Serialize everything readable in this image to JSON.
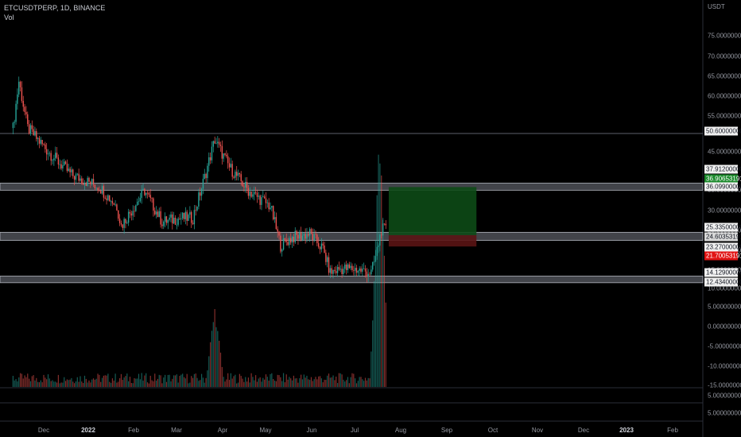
{
  "header": {
    "symbol_line": "ETCUSDTPERP, 1D, BINANCE",
    "indicator": "Vol"
  },
  "price_scale": {
    "currency": "USDT",
    "labels": [
      "75.00000000",
      "70.00000000",
      "65.00000000",
      "60.00000000",
      "55.00000000",
      "45.00000000",
      "35.00000000",
      "30.00000000",
      "25.00000000",
      "20.00000000",
      "15.00000000",
      "10.00000000"
    ],
    "volume_labels": [
      "5.00000000",
      "0.00000000",
      "-5.00000000",
      "-10.00000000",
      "-15.00000000"
    ],
    "sub_labels": [
      "5.00000000",
      "5.00000000"
    ]
  },
  "badges": [
    {
      "text": "50.60000000",
      "style": "white"
    },
    {
      "text": "37.91200000",
      "style": "white"
    },
    {
      "text": "36.90653191",
      "style": "green"
    },
    {
      "text": "36.09900000",
      "style": "white"
    },
    {
      "text": "25.33500000",
      "style": "white"
    },
    {
      "text": "24.60353191",
      "style": "gray"
    },
    {
      "text": "23.27000000",
      "style": "white"
    },
    {
      "text": "21.70053191",
      "style": "red"
    },
    {
      "text": "14.12900000",
      "style": "white"
    },
    {
      "text": "12.43400000",
      "style": "white"
    }
  ],
  "time_axis": [
    {
      "text": "Dec",
      "bold": false
    },
    {
      "text": "2022",
      "bold": true
    },
    {
      "text": "Feb",
      "bold": false
    },
    {
      "text": "Mar",
      "bold": false
    },
    {
      "text": "Apr",
      "bold": false
    },
    {
      "text": "May",
      "bold": false
    },
    {
      "text": "Jun",
      "bold": false
    },
    {
      "text": "Jul",
      "bold": false
    },
    {
      "text": "Aug",
      "bold": false
    },
    {
      "text": "Sep",
      "bold": false
    },
    {
      "text": "Oct",
      "bold": false
    },
    {
      "text": "Nov",
      "bold": false
    },
    {
      "text": "Dec",
      "bold": false
    },
    {
      "text": "2023",
      "bold": true
    },
    {
      "text": "Feb",
      "bold": false
    }
  ],
  "chart_data": {
    "type": "candlestick",
    "symbol": "ETCUSDTPERP",
    "interval": "1D",
    "exchange": "BINANCE",
    "y_unit": "USDT",
    "price_anchors": [
      [
        "2021-11-10",
        52
      ],
      [
        "2021-11-14",
        64
      ],
      [
        "2021-11-20",
        52
      ],
      [
        "2021-12-04",
        46
      ],
      [
        "2021-12-20",
        40
      ],
      [
        "2022-01-08",
        37
      ],
      [
        "2022-01-20",
        32
      ],
      [
        "2022-01-23",
        27
      ],
      [
        "2022-02-08",
        36
      ],
      [
        "2022-02-20",
        28
      ],
      [
        "2022-03-05",
        29
      ],
      [
        "2022-03-13",
        29
      ],
      [
        "2022-03-20",
        38
      ],
      [
        "2022-03-28",
        49
      ],
      [
        "2022-04-07",
        42
      ],
      [
        "2022-04-20",
        36
      ],
      [
        "2022-05-05",
        32
      ],
      [
        "2022-05-12",
        22
      ],
      [
        "2022-05-20",
        24
      ],
      [
        "2022-06-01",
        25
      ],
      [
        "2022-06-10",
        21
      ],
      [
        "2022-06-15",
        15
      ],
      [
        "2022-06-22",
        16
      ],
      [
        "2022-07-01",
        16
      ],
      [
        "2022-07-13",
        15
      ],
      [
        "2022-07-16",
        19
      ],
      [
        "2022-07-20",
        26
      ],
      [
        "2022-07-23",
        26
      ]
    ],
    "support_resistance_zones": [
      {
        "from": 36.099,
        "to": 37.912
      },
      {
        "from": 23.27,
        "to": 25.335
      },
      {
        "from": 12.434,
        "to": 14.129
      }
    ],
    "horizontal_line": 50.6,
    "long_position": {
      "entry": 24.60353191,
      "target": 36.90653191,
      "stop": 21.70053191,
      "start": "2022-07-25",
      "end": "2022-09-23"
    },
    "volume_spikes": [
      [
        "2022-03-28",
        3.5
      ],
      [
        "2022-07-18",
        8.5
      ],
      [
        "2022-07-20",
        5
      ]
    ],
    "colors": {
      "up": "#26a69a",
      "down": "#ef5350",
      "target_zone": "#0d4a16",
      "stop_zone": "#5a1414",
      "zone": "#787b86"
    }
  }
}
